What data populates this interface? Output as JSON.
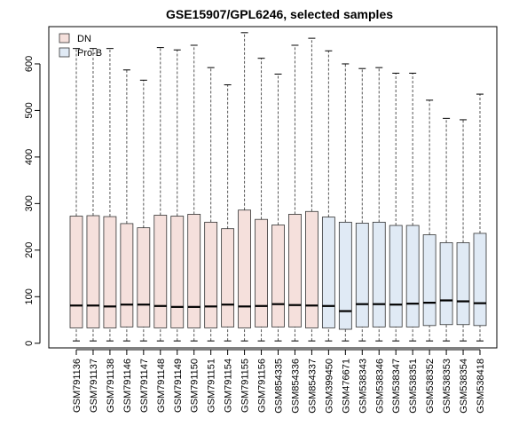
{
  "chart_data": {
    "type": "boxplot",
    "title": "GSE15907/GPL6246, selected samples",
    "xlabel": "",
    "ylabel": "",
    "ylim": [
      -10,
      680
    ],
    "yticks": [
      0,
      100,
      200,
      300,
      400,
      500,
      600
    ],
    "legend": {
      "position": "top-left",
      "entries": [
        {
          "name": "DN",
          "color": "#f5e0dc"
        },
        {
          "name": "Pro-B",
          "color": "#e0eaf5"
        }
      ]
    },
    "colors": {
      "DN": "#f5e0dc",
      "Pro-B": "#e0eaf5"
    },
    "categories": [
      "GSM791136",
      "GSM791137",
      "GSM791138",
      "GSM791146",
      "GSM791147",
      "GSM791148",
      "GSM791149",
      "GSM791150",
      "GSM791151",
      "GSM791154",
      "GSM791155",
      "GSM791156",
      "GSM854335",
      "GSM854336",
      "GSM854337",
      "GSM399450",
      "GSM476671",
      "GSM538343",
      "GSM538346",
      "GSM538347",
      "GSM538351",
      "GSM538352",
      "GSM538353",
      "GSM538354",
      "GSM538418"
    ],
    "groups": [
      "DN",
      "DN",
      "DN",
      "DN",
      "DN",
      "DN",
      "DN",
      "DN",
      "DN",
      "DN",
      "DN",
      "DN",
      "DN",
      "DN",
      "DN",
      "Pro-B",
      "Pro-B",
      "Pro-B",
      "Pro-B",
      "Pro-B",
      "Pro-B",
      "Pro-B",
      "Pro-B",
      "Pro-B",
      "Pro-B"
    ],
    "whisker_low": [
      5,
      5,
      5,
      5,
      5,
      5,
      5,
      5,
      5,
      5,
      5,
      5,
      5,
      5,
      5,
      5,
      5,
      5,
      5,
      5,
      5,
      5,
      5,
      5,
      5
    ],
    "q1": [
      33,
      33,
      33,
      35,
      35,
      33,
      33,
      33,
      33,
      35,
      33,
      35,
      35,
      35,
      33,
      33,
      30,
      35,
      35,
      35,
      35,
      38,
      40,
      40,
      38
    ],
    "median": [
      81,
      81,
      79,
      83,
      83,
      80,
      78,
      78,
      79,
      83,
      79,
      80,
      84,
      82,
      81,
      80,
      69,
      84,
      84,
      83,
      85,
      87,
      92,
      90,
      86
    ],
    "q3": [
      273,
      274,
      272,
      257,
      248,
      275,
      273,
      277,
      260,
      246,
      286,
      266,
      254,
      277,
      283,
      271,
      260,
      258,
      260,
      253,
      253,
      233,
      216,
      216,
      236
    ],
    "whisker_high": [
      633,
      633,
      633,
      587,
      565,
      635,
      630,
      640,
      592,
      555,
      667,
      612,
      578,
      640,
      655,
      628,
      600,
      590,
      592,
      580,
      580,
      522,
      483,
      480,
      535
    ]
  }
}
